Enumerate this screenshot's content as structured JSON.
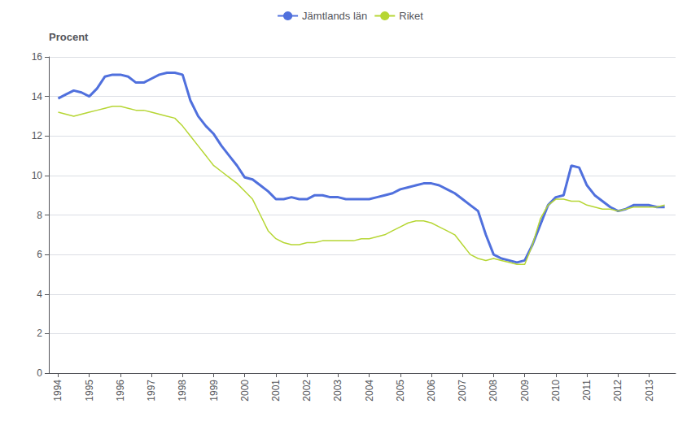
{
  "chart_data": {
    "type": "line",
    "ylabel": "Procent",
    "x": [
      1994.0,
      1994.25,
      1994.5,
      1994.75,
      1995.0,
      1995.25,
      1995.5,
      1995.75,
      1996.0,
      1996.25,
      1996.5,
      1996.75,
      1997.0,
      1997.25,
      1997.5,
      1997.75,
      1998.0,
      1998.25,
      1998.5,
      1998.75,
      1999.0,
      1999.25,
      1999.5,
      1999.75,
      2000.0,
      2000.25,
      2000.5,
      2000.75,
      2001.0,
      2001.25,
      2001.5,
      2001.75,
      2002.0,
      2002.25,
      2002.5,
      2002.75,
      2003.0,
      2003.25,
      2003.5,
      2003.75,
      2004.0,
      2004.25,
      2004.5,
      2004.75,
      2005.0,
      2005.25,
      2005.5,
      2005.75,
      2006.0,
      2006.25,
      2006.5,
      2006.75,
      2007.0,
      2007.25,
      2007.5,
      2007.75,
      2008.0,
      2008.25,
      2008.5,
      2008.75,
      2009.0,
      2009.25,
      2009.5,
      2009.75,
      2010.0,
      2010.25,
      2010.5,
      2010.75,
      2011.0,
      2011.25,
      2011.5,
      2011.75,
      2012.0,
      2012.25,
      2012.5,
      2012.75,
      2013.0,
      2013.25,
      2013.5
    ],
    "series": [
      {
        "name": "Jämtlands län",
        "values": [
          13.9,
          14.1,
          14.3,
          14.2,
          14.0,
          14.4,
          15.0,
          15.1,
          15.1,
          15.0,
          14.7,
          14.7,
          14.9,
          15.1,
          15.2,
          15.2,
          15.1,
          13.8,
          13.0,
          12.5,
          12.1,
          11.5,
          11.0,
          10.5,
          9.9,
          9.8,
          9.5,
          9.2,
          8.8,
          8.8,
          8.9,
          8.8,
          8.8,
          9.0,
          9.0,
          8.9,
          8.9,
          8.8,
          8.8,
          8.8,
          8.8,
          8.9,
          9.0,
          9.1,
          9.3,
          9.4,
          9.5,
          9.6,
          9.6,
          9.5,
          9.3,
          9.1,
          8.8,
          8.5,
          8.2,
          7.0,
          6.0,
          5.8,
          5.7,
          5.6,
          5.7,
          6.5,
          7.5,
          8.5,
          8.9,
          9.0,
          10.5,
          10.4,
          9.5,
          9.0,
          8.7,
          8.4,
          8.2,
          8.3,
          8.5,
          8.5,
          8.5,
          8.4,
          8.4
        ]
      },
      {
        "name": "Riket",
        "values": [
          13.2,
          13.1,
          13.0,
          13.1,
          13.2,
          13.3,
          13.4,
          13.5,
          13.5,
          13.4,
          13.3,
          13.3,
          13.2,
          13.1,
          13.0,
          12.9,
          12.5,
          12.0,
          11.5,
          11.0,
          10.5,
          10.2,
          9.9,
          9.6,
          9.2,
          8.8,
          8.0,
          7.2,
          6.8,
          6.6,
          6.5,
          6.5,
          6.6,
          6.6,
          6.7,
          6.7,
          6.7,
          6.7,
          6.7,
          6.8,
          6.8,
          6.9,
          7.0,
          7.2,
          7.4,
          7.6,
          7.7,
          7.7,
          7.6,
          7.4,
          7.2,
          7.0,
          6.5,
          6.0,
          5.8,
          5.7,
          5.8,
          5.7,
          5.6,
          5.5,
          5.5,
          6.5,
          7.8,
          8.5,
          8.8,
          8.8,
          8.7,
          8.7,
          8.5,
          8.4,
          8.3,
          8.3,
          8.2,
          8.3,
          8.4,
          8.4,
          8.4,
          8.4,
          8.5
        ]
      }
    ],
    "xlim": [
      1993.7,
      2013.85
    ],
    "xticks": [
      1994,
      1995,
      1996,
      1997,
      1998,
      1999,
      2000,
      2001,
      2002,
      2003,
      2004,
      2005,
      2006,
      2007,
      2008,
      2009,
      2010,
      2011,
      2012,
      2013
    ],
    "ylim": [
      0,
      16
    ],
    "yticks": [
      0,
      2,
      4,
      6,
      8,
      10,
      12,
      14,
      16
    ],
    "grid": true,
    "legend": "top"
  }
}
